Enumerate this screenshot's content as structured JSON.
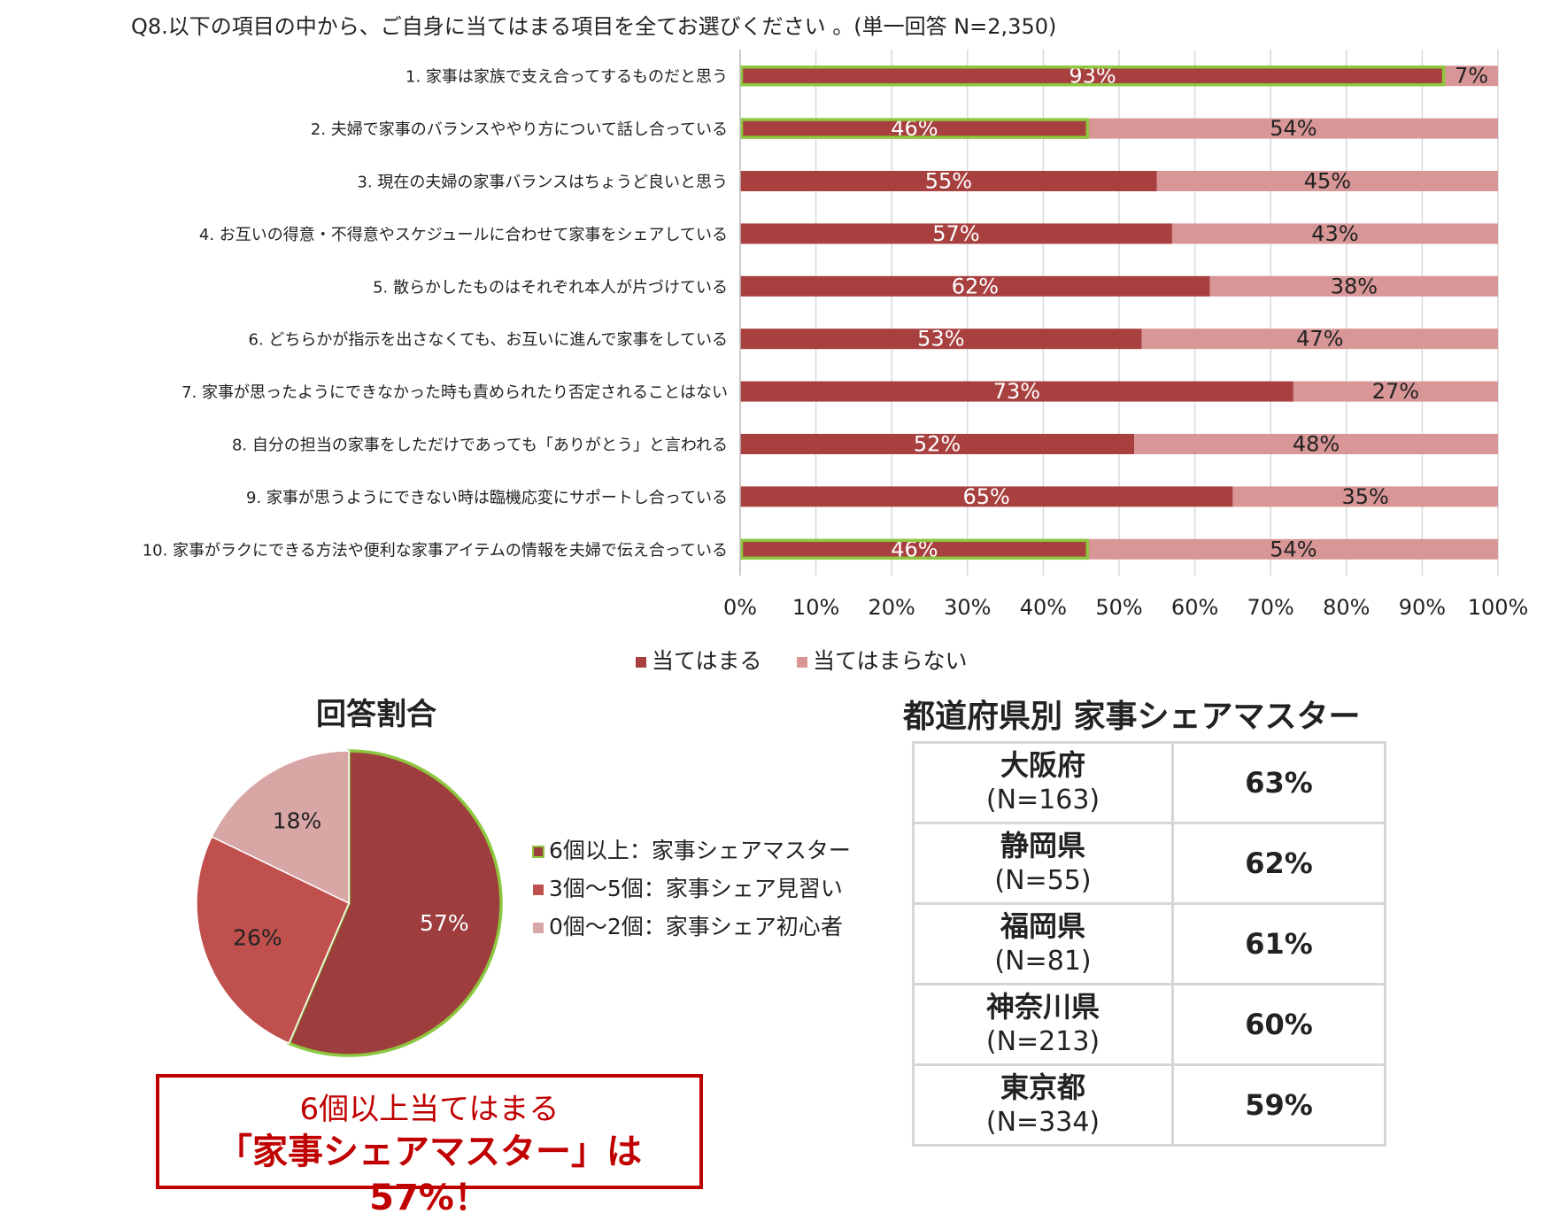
{
  "chart_data": [
    {
      "type": "bar",
      "orientation": "horizontal",
      "stacked": true,
      "title": "Q8.以下の項目の中から、ご自身に当てはまる項目を全てお選びください 。(単一回答 N=2,350)",
      "categories": [
        "1. 家事は家族で支え合ってするものだと思う",
        "2. 夫婦で家事のバランスややり方について話し合っている",
        "3. 現在の夫婦の家事バランスはちょうど良いと思う",
        "4. お互いの得意・不得意やスケジュールに合わせて家事をシェアしている",
        "5. 散らかしたものはそれぞれ本人が片づけている",
        "6. どちらかが指示を出さなくても、お互いに進んで家事をしている",
        "7. 家事が思ったようにできなかった時も責められたり否定されることはない",
        "8. 自分の担当の家事をしただけであっても「ありがとう」と言われる",
        "9. 家事が思うようにできない時は臨機応変にサポートし合っている",
        "10. 家事がラクにできる方法や便利な家事アイテムの情報を夫婦で伝え合っている"
      ],
      "series": [
        {
          "name": "当てはまる",
          "values": [
            93,
            46,
            55,
            57,
            62,
            53,
            73,
            52,
            65,
            46
          ]
        },
        {
          "name": "当てはまらない",
          "values": [
            7,
            54,
            45,
            43,
            38,
            47,
            27,
            48,
            35,
            54
          ]
        }
      ],
      "highlighted": [
        true,
        true,
        false,
        false,
        false,
        false,
        false,
        false,
        false,
        true
      ],
      "xlim": [
        0,
        100
      ],
      "xticks": [
        "0%",
        "10%",
        "20%",
        "30%",
        "40%",
        "50%",
        "60%",
        "70%",
        "80%",
        "90%",
        "100%"
      ],
      "grid": true,
      "legend_position": "bottom",
      "colors": {
        "series": [
          "#a84040",
          "#d89696"
        ],
        "highlight": "#8dc63f"
      }
    },
    {
      "type": "pie",
      "title": "回答割合",
      "labels": [
        "6個以上：家事シェアマスター",
        "3個～5個：家事シェア見習い",
        "0個～2個：家事シェア初心者"
      ],
      "values": [
        57,
        26,
        18
      ],
      "value_labels": [
        "57%",
        "26%",
        "18%"
      ],
      "legend_position": "right",
      "colors": [
        "#9e3d3d",
        "#c0504d",
        "#d9a6a6"
      ],
      "highlight_color": "#8dc63f"
    }
  ],
  "callout": {
    "line1": "6個以上当てはまる",
    "line2": "「家事シェアマスター」は57%！"
  },
  "prefecture_table": {
    "title": "都道府県別 家事シェアマスター",
    "rows": [
      {
        "name": "大阪府",
        "n": "(N=163)",
        "value": "63%"
      },
      {
        "name": "静岡県",
        "n": "(N=55)",
        "value": "62%"
      },
      {
        "name": "福岡県",
        "n": "(N=81)",
        "value": "61%"
      },
      {
        "name": "神奈川県",
        "n": "(N=213)",
        "value": "60%"
      },
      {
        "name": "東京都",
        "n": "(N=334)",
        "value": "59%"
      }
    ]
  }
}
